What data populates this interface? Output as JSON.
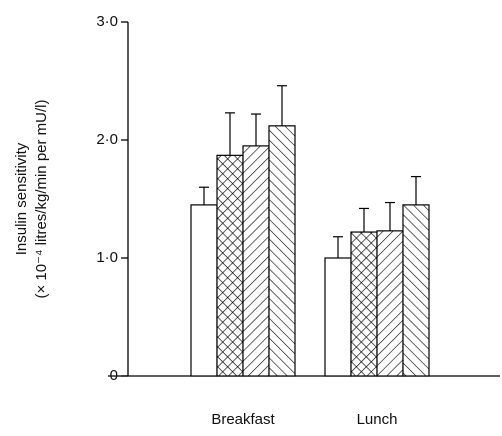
{
  "chart_data": {
    "type": "bar",
    "ylabel": [
      "Insulin sensitivity",
      "(× 10⁻⁴ litres/kg/min per mU/l)"
    ],
    "categories": [
      "Breakfast",
      "Lunch"
    ],
    "series": [
      {
        "pattern": "none",
        "color": "#000000",
        "values": [
          1.45,
          1.0
        ],
        "errors": [
          0.15,
          0.18
        ]
      },
      {
        "pattern": "crosshatch",
        "color": "#000000",
        "values": [
          1.87,
          1.22
        ],
        "errors": [
          0.36,
          0.2
        ]
      },
      {
        "pattern": "forward",
        "color": "#000000",
        "values": [
          1.95,
          1.23
        ],
        "errors": [
          0.27,
          0.24
        ]
      },
      {
        "pattern": "backward",
        "color": "#000000",
        "values": [
          2.12,
          1.45
        ],
        "errors": [
          0.34,
          0.24
        ]
      }
    ],
    "ylim": [
      0,
      3
    ],
    "yticks": [
      0,
      {
        "value": 1,
        "label": "1·0"
      },
      {
        "value": 2,
        "label": "2·0"
      },
      {
        "value": 3,
        "label": "3·0"
      }
    ]
  }
}
